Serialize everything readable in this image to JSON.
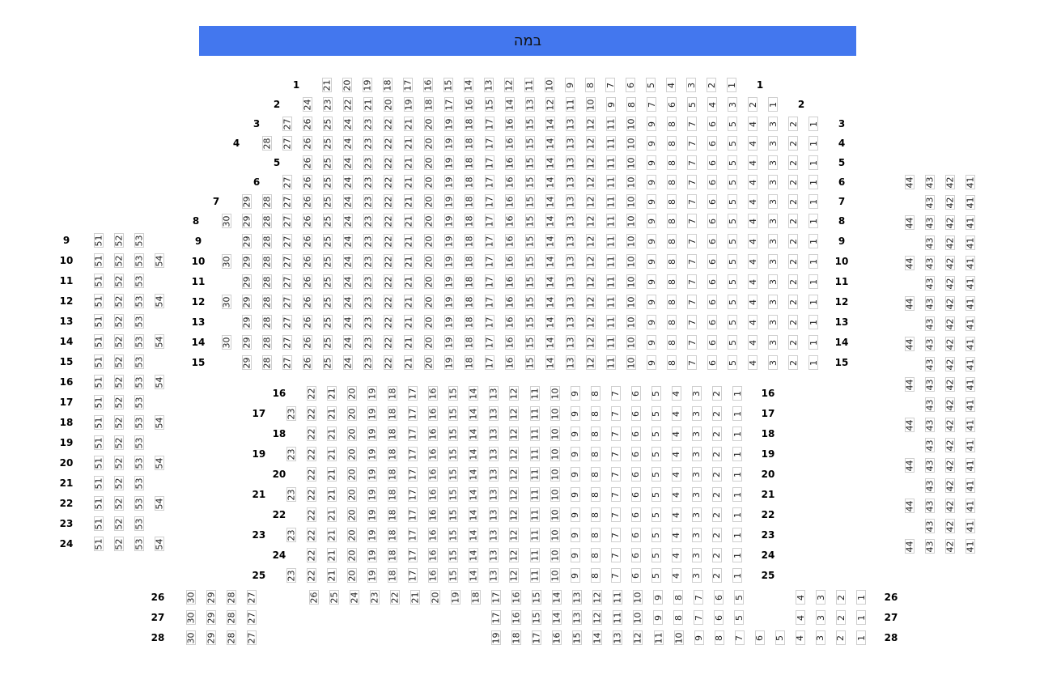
{
  "stage": {
    "label": "במה",
    "color": "#4377ee"
  },
  "sections": [
    {
      "name": "main",
      "label_sides": [
        "left",
        "right"
      ],
      "rows": [
        {
          "label": "1",
          "seats": [
            [
              21,
              1
            ]
          ]
        },
        {
          "label": "2",
          "seats": [
            [
              24,
              1
            ]
          ]
        },
        {
          "label": "3",
          "seats": [
            [
              27,
              1
            ]
          ]
        },
        {
          "label": "4",
          "seats": [
            [
              28,
              1
            ]
          ]
        },
        {
          "label": "5",
          "seats": [
            [
              26,
              1
            ]
          ]
        },
        {
          "label": "6",
          "seats": [
            [
              27,
              1
            ]
          ]
        },
        {
          "label": "7",
          "seats": [
            [
              29,
              1
            ]
          ]
        },
        {
          "label": "8",
          "seats": [
            [
              30,
              1
            ]
          ]
        },
        {
          "label": "9",
          "seats": [
            [
              29,
              1
            ]
          ]
        },
        {
          "label": "10",
          "seats": [
            [
              30,
              1
            ]
          ]
        },
        {
          "label": "11",
          "seats": [
            [
              29,
              1
            ]
          ]
        },
        {
          "label": "12",
          "seats": [
            [
              30,
              1
            ]
          ]
        },
        {
          "label": "13",
          "seats": [
            [
              29,
              1
            ]
          ]
        },
        {
          "label": "14",
          "seats": [
            [
              30,
              1
            ]
          ]
        },
        {
          "label": "15",
          "seats": [
            [
              29,
              1
            ]
          ]
        }
      ]
    },
    {
      "name": "lower",
      "label_sides": [
        "left",
        "right"
      ],
      "rows": [
        {
          "label": "16",
          "seats": [
            [
              22,
              1
            ]
          ]
        },
        {
          "label": "17",
          "seats": [
            [
              23,
              1
            ]
          ]
        },
        {
          "label": "18",
          "seats": [
            [
              22,
              1
            ]
          ]
        },
        {
          "label": "19",
          "seats": [
            [
              23,
              1
            ]
          ]
        },
        {
          "label": "20",
          "seats": [
            [
              22,
              1
            ]
          ]
        },
        {
          "label": "21",
          "seats": [
            [
              23,
              1
            ]
          ]
        },
        {
          "label": "22",
          "seats": [
            [
              22,
              1
            ]
          ]
        },
        {
          "label": "23",
          "seats": [
            [
              23,
              1
            ]
          ]
        },
        {
          "label": "24",
          "seats": [
            [
              22,
              1
            ]
          ]
        },
        {
          "label": "25",
          "seats": [
            [
              23,
              1
            ]
          ]
        }
      ]
    },
    {
      "name": "back",
      "label_sides": [
        "left",
        "right"
      ],
      "rows": [
        {
          "label": "26",
          "seats": [
            [
              30,
              27
            ],
            [
              26,
              5
            ],
            [
              4,
              1
            ]
          ]
        },
        {
          "label": "27",
          "seats": [
            [
              30,
              27
            ],
            [
              17,
              5
            ],
            [
              4,
              1
            ]
          ]
        },
        {
          "label": "28",
          "seats": [
            [
              30,
              27
            ],
            [
              19,
              1
            ]
          ]
        }
      ]
    },
    {
      "name": "left-wing",
      "label_sides": [
        "left"
      ],
      "rows": [
        {
          "label": "9",
          "seats": [
            [
              51,
              53
            ]
          ]
        },
        {
          "label": "10",
          "seats": [
            [
              51,
              54
            ]
          ]
        },
        {
          "label": "11",
          "seats": [
            [
              51,
              53
            ]
          ]
        },
        {
          "label": "12",
          "seats": [
            [
              51,
              54
            ]
          ]
        },
        {
          "label": "13",
          "seats": [
            [
              51,
              53
            ]
          ]
        },
        {
          "label": "14",
          "seats": [
            [
              51,
              54
            ]
          ]
        },
        {
          "label": "15",
          "seats": [
            [
              51,
              53
            ]
          ]
        },
        {
          "label": "16",
          "seats": [
            [
              51,
              54
            ]
          ]
        },
        {
          "label": "17",
          "seats": [
            [
              51,
              53
            ]
          ]
        },
        {
          "label": "18",
          "seats": [
            [
              51,
              54
            ]
          ]
        },
        {
          "label": "19",
          "seats": [
            [
              51,
              53
            ]
          ]
        },
        {
          "label": "20",
          "seats": [
            [
              51,
              54
            ]
          ]
        },
        {
          "label": "21",
          "seats": [
            [
              51,
              53
            ]
          ]
        },
        {
          "label": "22",
          "seats": [
            [
              51,
              54
            ]
          ]
        },
        {
          "label": "23",
          "seats": [
            [
              51,
              53
            ]
          ]
        },
        {
          "label": "24",
          "seats": [
            [
              51,
              54
            ]
          ]
        }
      ]
    },
    {
      "name": "right-wing",
      "label_sides": [],
      "rows": [
        {
          "row": 6,
          "seats": [
            [
              44,
              41
            ]
          ]
        },
        {
          "row": 7,
          "seats": [
            [
              43,
              41
            ]
          ]
        },
        {
          "row": 8,
          "seats": [
            [
              44,
              41
            ]
          ]
        },
        {
          "row": 9,
          "seats": [
            [
              43,
              41
            ]
          ]
        },
        {
          "row": 10,
          "seats": [
            [
              44,
              41
            ]
          ]
        },
        {
          "row": 11,
          "seats": [
            [
              43,
              41
            ]
          ]
        },
        {
          "row": 12,
          "seats": [
            [
              44,
              41
            ]
          ]
        },
        {
          "row": 13,
          "seats": [
            [
              43,
              41
            ]
          ]
        },
        {
          "row": 14,
          "seats": [
            [
              44,
              41
            ]
          ]
        },
        {
          "row": 15,
          "seats": [
            [
              43,
              41
            ]
          ]
        },
        {
          "row": 16,
          "seats": [
            [
              44,
              41
            ]
          ]
        },
        {
          "row": 17,
          "seats": [
            [
              43,
              41
            ]
          ]
        },
        {
          "row": 18,
          "seats": [
            [
              44,
              41
            ]
          ]
        },
        {
          "row": 19,
          "seats": [
            [
              43,
              41
            ]
          ]
        },
        {
          "row": 20,
          "seats": [
            [
              44,
              41
            ]
          ]
        },
        {
          "row": 21,
          "seats": [
            [
              43,
              41
            ]
          ]
        },
        {
          "row": 22,
          "seats": [
            [
              44,
              41
            ]
          ]
        },
        {
          "row": 23,
          "seats": [
            [
              43,
              41
            ]
          ]
        },
        {
          "row": 24,
          "seats": [
            [
              44,
              41
            ]
          ]
        }
      ]
    }
  ]
}
